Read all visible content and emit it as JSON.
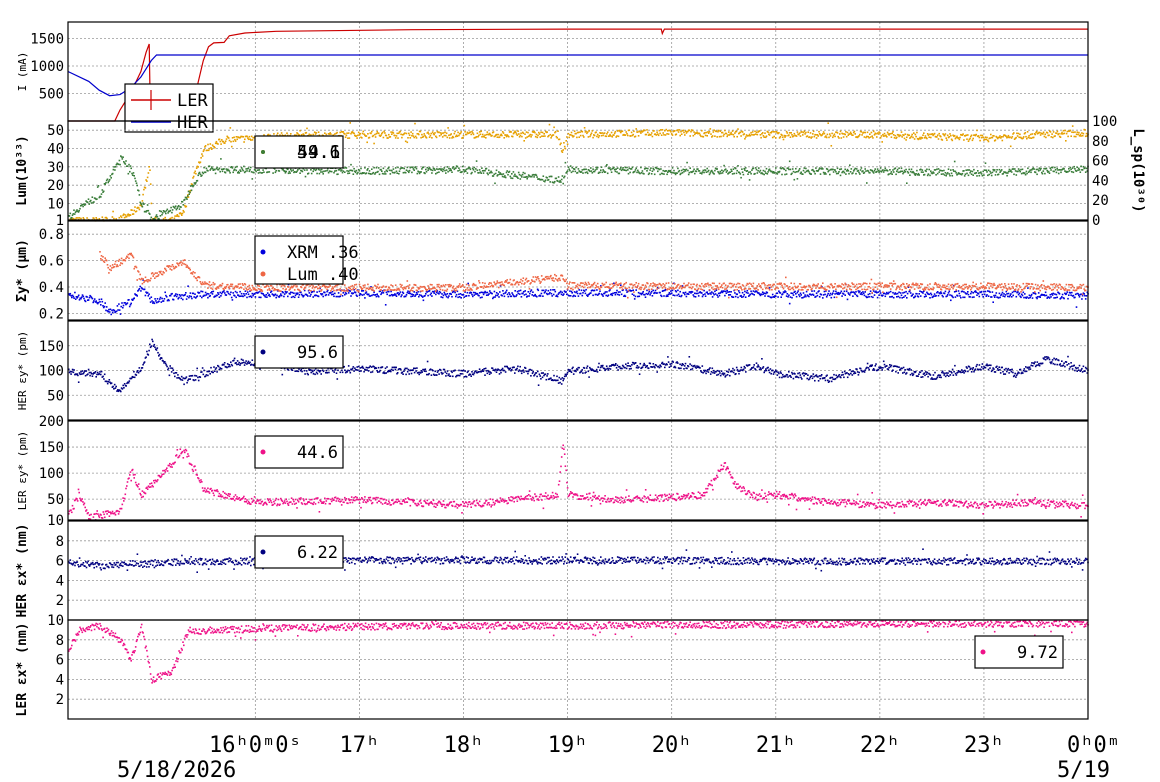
{
  "time_axis": {
    "tick_labels": [
      {
        "t": 1.0,
        "text": "16ʰ0ᵐ0ˢ"
      },
      {
        "t": 2.0,
        "text": "17ʰ"
      },
      {
        "t": 3.0,
        "text": "18ʰ"
      },
      {
        "t": 4.0,
        "text": "19ʰ"
      },
      {
        "t": 5.0,
        "text": "20ʰ"
      },
      {
        "t": 6.0,
        "text": "21ʰ"
      },
      {
        "t": 7.0,
        "text": "22ʰ"
      },
      {
        "t": 8.0,
        "text": "23ʰ"
      },
      {
        "t": 9.0,
        "text": "0ʰ0ᵐ"
      }
    ],
    "start_date": "5/18/2026",
    "end_date": "5/19"
  },
  "chart_data": [
    {
      "id": "current",
      "type": "line",
      "ylabel": "I (mA)",
      "ylim": [
        0,
        1800
      ],
      "yticks": [
        500,
        1000,
        1500
      ],
      "grid": true,
      "legend": {
        "position": "top-left",
        "entries": [
          {
            "label": "LER",
            "color": "#cc0000"
          },
          {
            "label": "HER",
            "color": "#0000cc"
          }
        ]
      },
      "series": [
        {
          "name": "LER",
          "color": "#cc0000",
          "points": [
            [
              -0.8,
              0
            ],
            [
              -0.35,
              0
            ],
            [
              -0.3,
              200
            ],
            [
              -0.2,
              500
            ],
            [
              -0.1,
              900
            ],
            [
              -0.05,
              1250
            ],
            [
              -0.02,
              1400
            ],
            [
              -0.01,
              300
            ],
            [
              0.0,
              0
            ],
            [
              0.2,
              0
            ],
            [
              0.35,
              0
            ],
            [
              0.4,
              200
            ],
            [
              0.45,
              700
            ],
            [
              0.5,
              1100
            ],
            [
              0.55,
              1350
            ],
            [
              0.6,
              1420
            ],
            [
              0.7,
              1430
            ],
            [
              0.75,
              1550
            ],
            [
              0.9,
              1600
            ],
            [
              1.2,
              1630
            ],
            [
              2.5,
              1660
            ],
            [
              4.0,
              1670
            ],
            [
              4.9,
              1670
            ],
            [
              4.91,
              1590
            ],
            [
              4.93,
              1670
            ],
            [
              9.0,
              1670
            ]
          ]
        },
        {
          "name": "HER",
          "color": "#0000cc",
          "points": [
            [
              -0.8,
              900
            ],
            [
              -0.6,
              720
            ],
            [
              -0.5,
              560
            ],
            [
              -0.4,
              460
            ],
            [
              -0.3,
              480
            ],
            [
              -0.2,
              600
            ],
            [
              -0.1,
              800
            ],
            [
              -0.05,
              950
            ],
            [
              0.0,
              1100
            ],
            [
              0.05,
              1200
            ],
            [
              9.0,
              1200
            ]
          ]
        }
      ]
    },
    {
      "id": "luminosity",
      "type": "scatter",
      "ylabel": "Lum(10³³)",
      "y2label": "L_sp(10³⁰)",
      "ylim": [
        1,
        55
      ],
      "yticks": [
        1,
        10,
        20,
        30,
        40,
        50
      ],
      "y2lim": [
        0,
        100
      ],
      "y2ticks": [
        0,
        20,
        40,
        60,
        80,
        100
      ],
      "grid": true,
      "legend": {
        "position": "top-center",
        "readout": "59.1 / 44.6",
        "entries": [
          {
            "label": "59.1",
            "color": "#e6a000"
          },
          {
            "label": "44.6",
            "color": "#3a7d3a"
          }
        ]
      },
      "series": [
        {
          "name": "59.1",
          "color": "#e6a000",
          "points": [
            [
              -0.8,
              1
            ],
            [
              -0.5,
              1
            ],
            [
              -0.3,
              2
            ],
            [
              -0.2,
              5
            ],
            [
              -0.1,
              10
            ],
            [
              -0.05,
              25
            ],
            [
              -0.02,
              30
            ],
            [
              0.0,
              1
            ],
            [
              0.2,
              1
            ],
            [
              0.3,
              5
            ],
            [
              0.4,
              25
            ],
            [
              0.5,
              40
            ],
            [
              0.7,
              45
            ],
            [
              1.2,
              47
            ],
            [
              2.0,
              48
            ],
            [
              3.0,
              48
            ],
            [
              3.9,
              48
            ],
            [
              3.95,
              38
            ],
            [
              4.0,
              48
            ],
            [
              5.0,
              49
            ],
            [
              6.0,
              48
            ],
            [
              7.0,
              48
            ],
            [
              8.0,
              46
            ],
            [
              8.5,
              48
            ],
            [
              9.0,
              49
            ]
          ]
        },
        {
          "name": "44.6",
          "color": "#3a7d3a",
          "points": [
            [
              -0.8,
              3
            ],
            [
              -0.7,
              8
            ],
            [
              -0.5,
              15
            ],
            [
              -0.4,
              25
            ],
            [
              -0.3,
              35
            ],
            [
              -0.2,
              30
            ],
            [
              -0.1,
              10
            ],
            [
              0.0,
              2
            ],
            [
              0.3,
              10
            ],
            [
              0.4,
              22
            ],
            [
              0.5,
              29
            ],
            [
              1.0,
              29
            ],
            [
              2.0,
              28
            ],
            [
              3.0,
              29
            ],
            [
              3.95,
              23
            ],
            [
              4.0,
              29
            ],
            [
              5.0,
              28
            ],
            [
              6.0,
              28
            ],
            [
              7.0,
              28
            ],
            [
              8.0,
              27
            ],
            [
              9.0,
              29
            ]
          ]
        }
      ]
    },
    {
      "id": "sigma",
      "type": "scatter",
      "ylabel": "Σy* (μm)",
      "ylim": [
        0.15,
        0.9
      ],
      "yticks": [
        0.2,
        0.4,
        0.6,
        0.8
      ],
      "grid": true,
      "legend": {
        "position": "top-center",
        "entries": [
          {
            "label": "XRM  .36",
            "color": "#0000dd"
          },
          {
            "label": "Lum  .40",
            "color": "#ee6644"
          }
        ]
      },
      "series": [
        {
          "name": "XRM  .36",
          "color": "#0000dd",
          "points": [
            [
              -0.8,
              0.35
            ],
            [
              -0.5,
              0.3
            ],
            [
              -0.4,
              0.22
            ],
            [
              -0.2,
              0.3
            ],
            [
              -0.1,
              0.4
            ],
            [
              0.0,
              0.3
            ],
            [
              0.2,
              0.33
            ],
            [
              0.5,
              0.35
            ],
            [
              1.0,
              0.35
            ],
            [
              2.0,
              0.36
            ],
            [
              3.0,
              0.35
            ],
            [
              4.0,
              0.36
            ],
            [
              5.0,
              0.36
            ],
            [
              6.0,
              0.35
            ],
            [
              7.0,
              0.35
            ],
            [
              8.0,
              0.35
            ],
            [
              9.0,
              0.34
            ]
          ]
        },
        {
          "name": "Lum  .40",
          "color": "#ee6644",
          "points": [
            [
              -0.5,
              0.65
            ],
            [
              -0.4,
              0.55
            ],
            [
              -0.3,
              0.6
            ],
            [
              -0.2,
              0.65
            ],
            [
              -0.1,
              0.45
            ],
            [
              0.3,
              0.6
            ],
            [
              0.5,
              0.42
            ],
            [
              1.0,
              0.4
            ],
            [
              2.0,
              0.4
            ],
            [
              3.0,
              0.4
            ],
            [
              3.95,
              0.48
            ],
            [
              4.0,
              0.42
            ],
            [
              5.0,
              0.41
            ],
            [
              6.0,
              0.41
            ],
            [
              7.0,
              0.41
            ],
            [
              8.0,
              0.41
            ],
            [
              9.0,
              0.4
            ]
          ]
        }
      ]
    },
    {
      "id": "her_ey",
      "type": "scatter",
      "ylabel": "HER εy* (pm)",
      "ylim": [
        0,
        200
      ],
      "yticks": [
        50,
        100,
        150
      ],
      "grid": true,
      "legend": {
        "position": "top-center",
        "entries": [
          {
            "label": "95.6",
            "color": "#000080"
          }
        ]
      },
      "series": [
        {
          "name": "95.6",
          "color": "#000080",
          "points": [
            [
              -0.8,
              100
            ],
            [
              -0.5,
              95
            ],
            [
              -0.3,
              60
            ],
            [
              -0.1,
              110
            ],
            [
              0.0,
              160
            ],
            [
              0.1,
              120
            ],
            [
              0.3,
              80
            ],
            [
              0.5,
              95
            ],
            [
              0.8,
              120
            ],
            [
              1.2,
              115
            ],
            [
              1.5,
              100
            ],
            [
              2.0,
              105
            ],
            [
              2.5,
              100
            ],
            [
              3.0,
              95
            ],
            [
              3.5,
              105
            ],
            [
              3.95,
              80
            ],
            [
              4.0,
              100
            ],
            [
              4.5,
              110
            ],
            [
              5.0,
              115
            ],
            [
              5.5,
              95
            ],
            [
              5.8,
              110
            ],
            [
              6.0,
              95
            ],
            [
              6.5,
              85
            ],
            [
              7.0,
              110
            ],
            [
              7.5,
              90
            ],
            [
              8.0,
              110
            ],
            [
              8.3,
              95
            ],
            [
              8.6,
              125
            ],
            [
              9.0,
              100
            ]
          ]
        }
      ]
    },
    {
      "id": "ler_ey",
      "type": "scatter",
      "ylabel": "LER εy* (pm)",
      "ylim": [
        10,
        200
      ],
      "yticks": [
        10,
        50,
        100,
        150,
        200
      ],
      "grid": true,
      "legend": {
        "position": "top-center",
        "entries": [
          {
            "label": "44.6",
            "color": "#ee1188"
          }
        ]
      },
      "series": [
        {
          "name": "44.6",
          "color": "#ee1188",
          "points": [
            [
              -0.8,
              20
            ],
            [
              -0.7,
              60
            ],
            [
              -0.6,
              15
            ],
            [
              -0.3,
              30
            ],
            [
              -0.2,
              110
            ],
            [
              -0.1,
              60
            ],
            [
              0.2,
              120
            ],
            [
              0.3,
              150
            ],
            [
              0.5,
              70
            ],
            [
              1.0,
              45
            ],
            [
              2.0,
              50
            ],
            [
              3.0,
              40
            ],
            [
              3.9,
              60
            ],
            [
              3.95,
              160
            ],
            [
              4.0,
              60
            ],
            [
              4.5,
              50
            ],
            [
              5.0,
              55
            ],
            [
              5.3,
              60
            ],
            [
              5.5,
              120
            ],
            [
              5.6,
              80
            ],
            [
              5.8,
              55
            ],
            [
              6.0,
              60
            ],
            [
              6.5,
              45
            ],
            [
              7.0,
              40
            ],
            [
              7.5,
              45
            ],
            [
              8.0,
              40
            ],
            [
              8.5,
              45
            ],
            [
              9.0,
              38
            ]
          ]
        }
      ]
    },
    {
      "id": "her_ex",
      "type": "scatter",
      "ylabel": "HER εx* (nm)",
      "ylim": [
        0,
        10
      ],
      "yticks": [
        2,
        4,
        6,
        8
      ],
      "grid": true,
      "legend": {
        "position": "top-center",
        "entries": [
          {
            "label": "6.22",
            "color": "#000080"
          }
        ]
      },
      "series": [
        {
          "name": "6.22",
          "color": "#000080",
          "points": [
            [
              -0.8,
              5.8
            ],
            [
              -0.4,
              5.6
            ],
            [
              0.0,
              5.8
            ],
            [
              0.5,
              6.0
            ],
            [
              1.0,
              6.0
            ],
            [
              1.5,
              5.9
            ],
            [
              2.0,
              6.1
            ],
            [
              3.0,
              6.1
            ],
            [
              4.0,
              6.1
            ],
            [
              5.0,
              6.1
            ],
            [
              6.0,
              6.0
            ],
            [
              7.0,
              6.0
            ],
            [
              8.0,
              6.0
            ],
            [
              9.0,
              6.0
            ]
          ]
        }
      ]
    },
    {
      "id": "ler_ex",
      "type": "scatter",
      "ylabel": "LER εx* (nm)",
      "ylim": [
        0,
        10
      ],
      "yticks": [
        2,
        4,
        6,
        8,
        10
      ],
      "grid": true,
      "legend": {
        "position": "top-right",
        "entries": [
          {
            "label": "9.72",
            "color": "#ee1188"
          }
        ]
      },
      "series": [
        {
          "name": "9.72",
          "color": "#ee1188",
          "points": [
            [
              -0.8,
              7
            ],
            [
              -0.7,
              9
            ],
            [
              -0.5,
              9.5
            ],
            [
              -0.3,
              8
            ],
            [
              -0.2,
              6
            ],
            [
              -0.1,
              9.5
            ],
            [
              0.0,
              4
            ],
            [
              0.2,
              5
            ],
            [
              0.35,
              9
            ],
            [
              0.5,
              9
            ],
            [
              1.0,
              9.2
            ],
            [
              2.0,
              9.4
            ],
            [
              3.0,
              9.5
            ],
            [
              4.0,
              9.5
            ],
            [
              5.0,
              9.6
            ],
            [
              6.0,
              9.6
            ],
            [
              7.0,
              9.7
            ],
            [
              8.0,
              9.7
            ],
            [
              9.0,
              9.7
            ]
          ]
        }
      ]
    }
  ]
}
